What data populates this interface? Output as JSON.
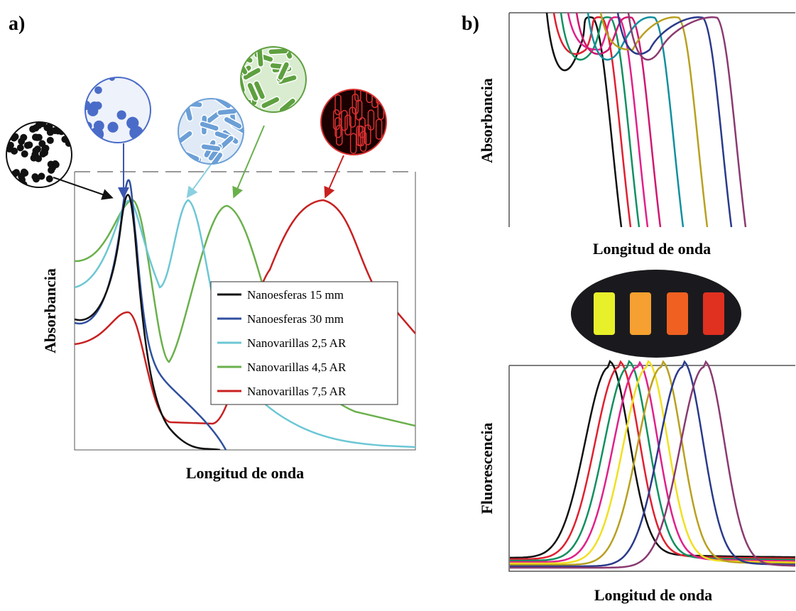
{
  "panel_a": {
    "label": "a)",
    "y_label": "Absorbancia",
    "x_label": "Longitud de onda",
    "legend": [
      "Nanoesferas 15 mm",
      "Nanoesferas 30 mm",
      "Nanovarillas 2,5 AR",
      "Nanovarillas 4,5 AR",
      "Nanovarillas 7,5 AR"
    ]
  },
  "panel_b": {
    "label": "b)",
    "top": {
      "y_label": "Absorbancia",
      "x_label": "Longitud de onda"
    },
    "bottom": {
      "y_label": "Fluorescencia",
      "x_label": "Longitud de onda"
    }
  }
}
